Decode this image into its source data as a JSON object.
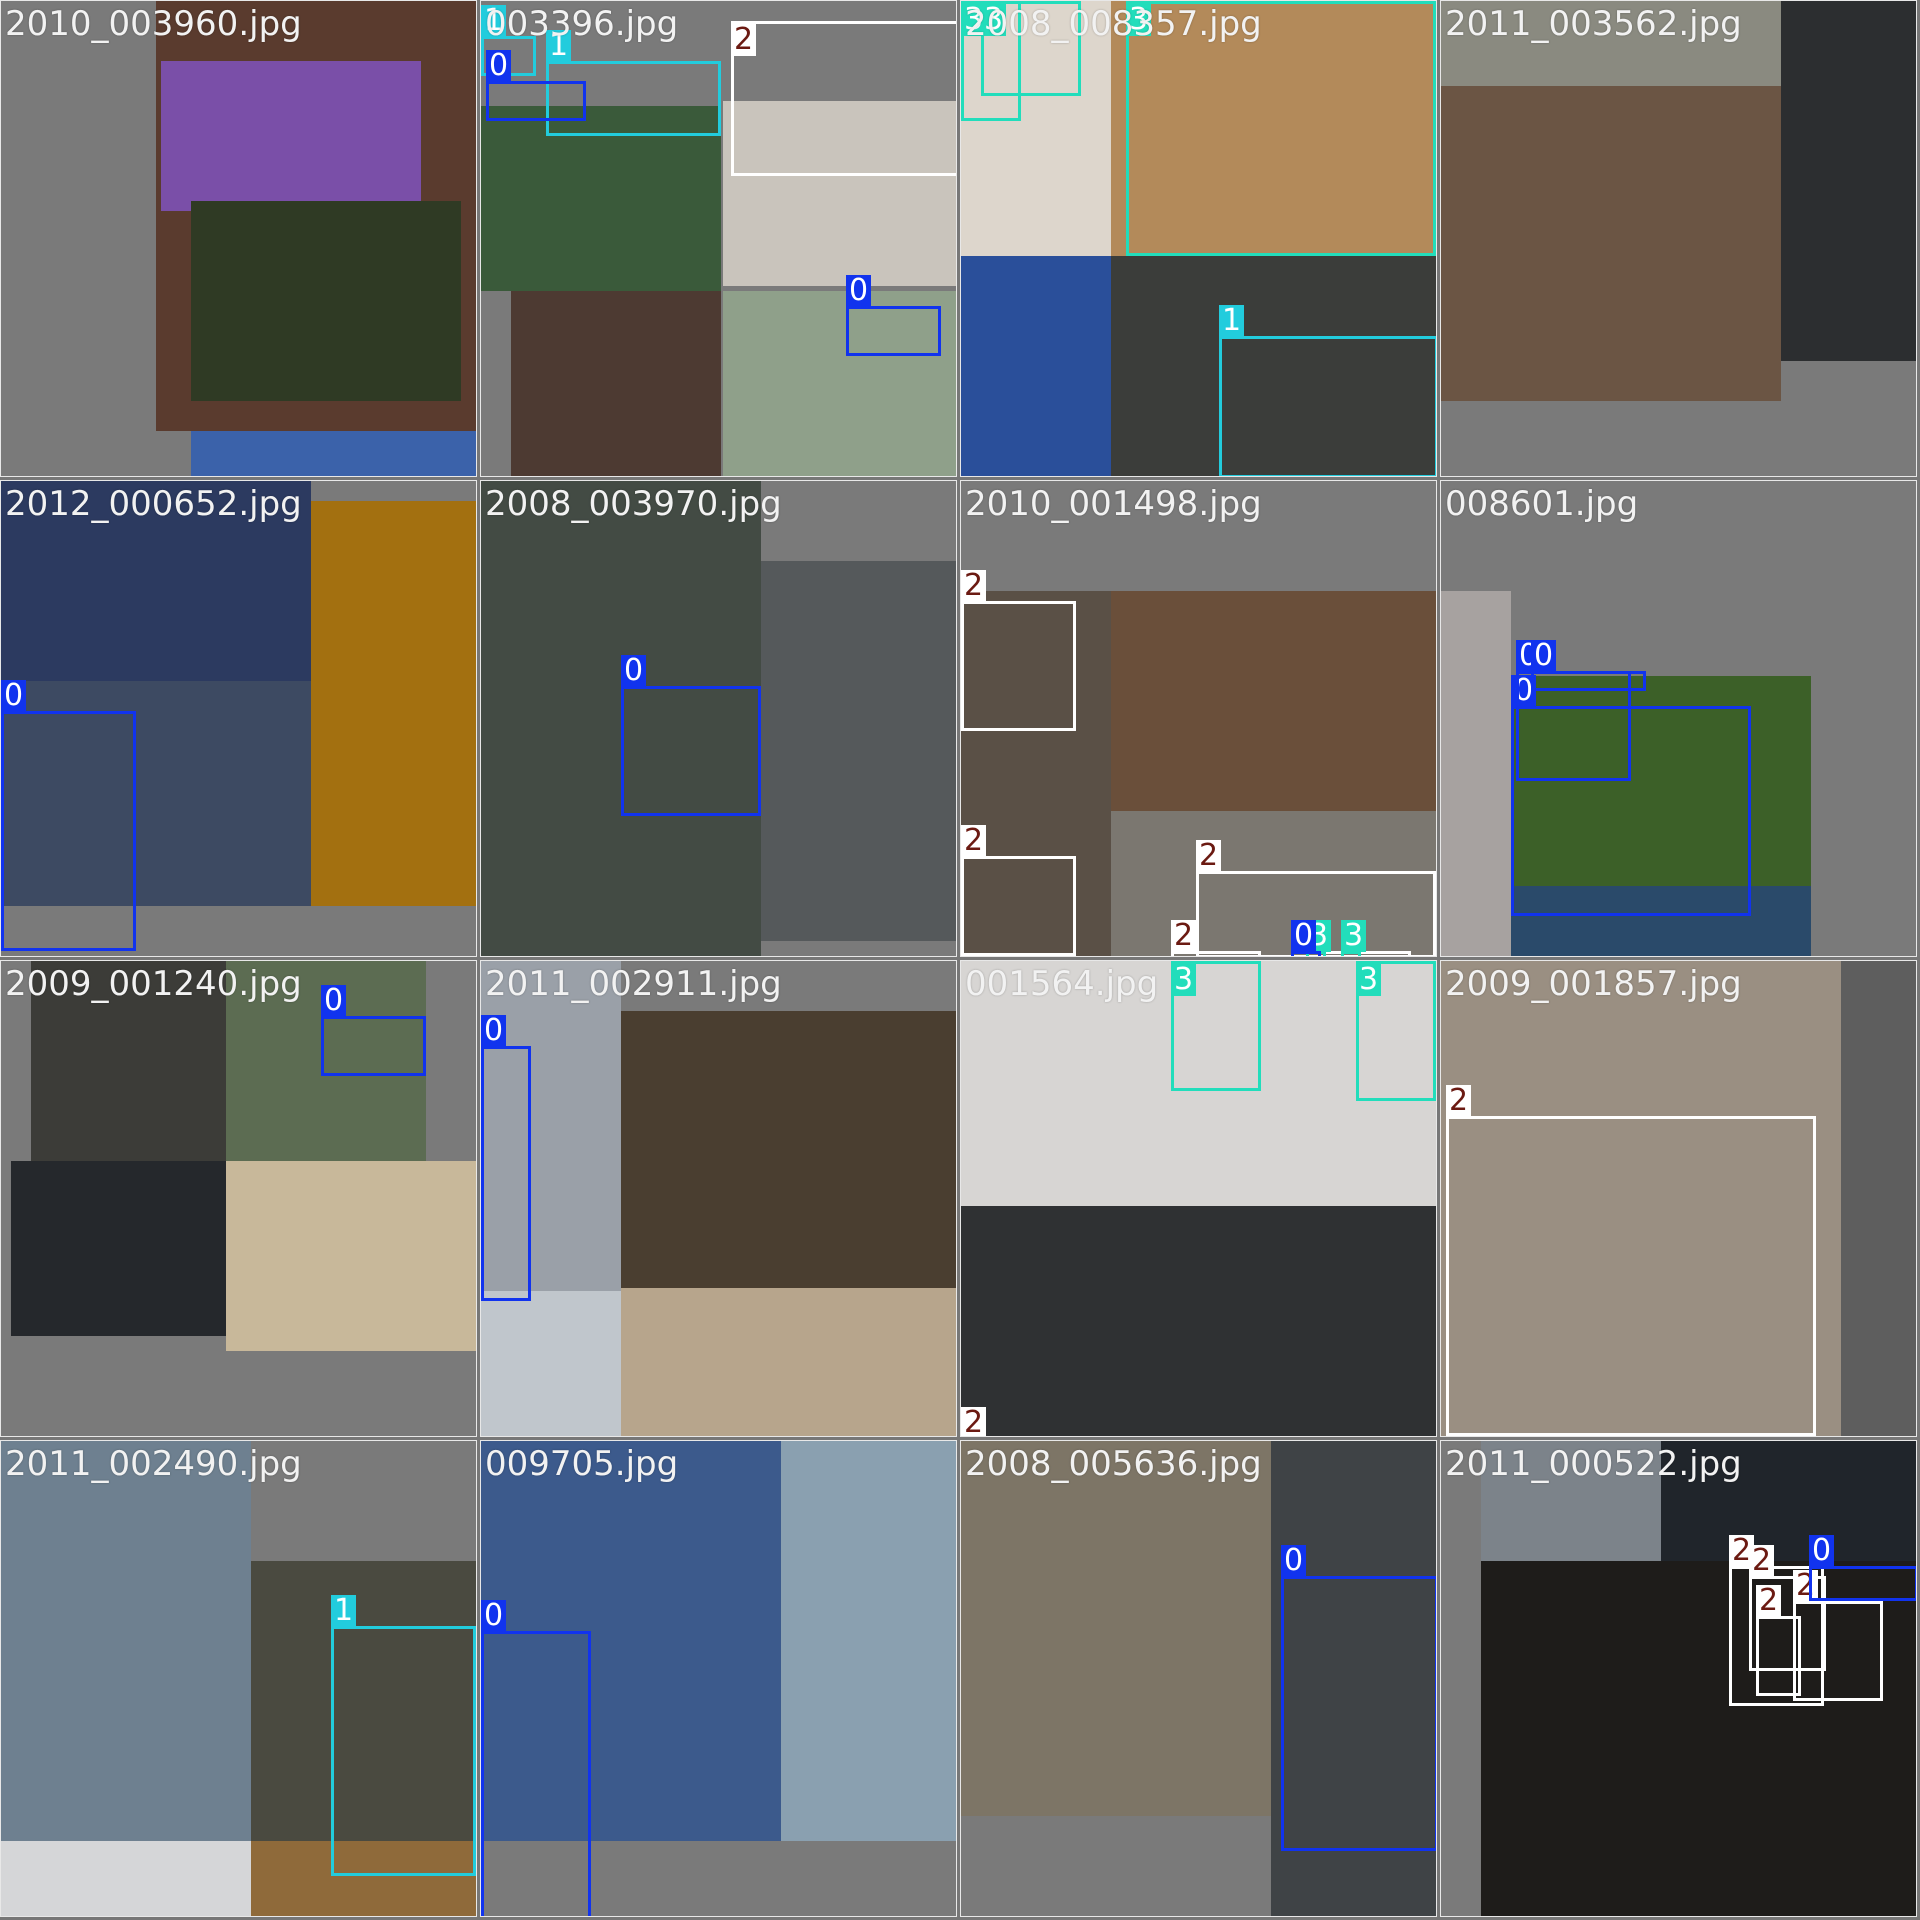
{
  "mosaic": {
    "classes": {
      "0": "#1133ee",
      "1": "#22ccdd",
      "2": "#ffffff",
      "3": "#22ddbb"
    },
    "tiles": [
      {
        "title": "2010_003960.jpg",
        "boxes": []
      },
      {
        "title": "003396.jpg",
        "boxes": [
          {
            "label": "1",
            "cls": "1"
          },
          {
            "label": "1",
            "cls": "1"
          },
          {
            "label": "0",
            "cls": "0"
          },
          {
            "label": "2",
            "cls": "2"
          },
          {
            "label": "0",
            "cls": "0"
          }
        ]
      },
      {
        "title": "2008_008357.jpg",
        "boxes": [
          {
            "label": "3",
            "cls": "3"
          },
          {
            "label": "3",
            "cls": "3"
          },
          {
            "label": "3",
            "cls": "3"
          },
          {
            "label": "1",
            "cls": "1"
          }
        ]
      },
      {
        "title": "2011_003562.jpg",
        "boxes": []
      },
      {
        "title": "2012_000652.jpg",
        "boxes": [
          {
            "label": "0",
            "cls": "0"
          }
        ]
      },
      {
        "title": "2008_003970.jpg",
        "boxes": [
          {
            "label": "0",
            "cls": "0"
          }
        ]
      },
      {
        "title": "2010_001498.jpg",
        "boxes": [
          {
            "label": "2",
            "cls": "2"
          },
          {
            "label": "2",
            "cls": "2"
          },
          {
            "label": "2",
            "cls": "2"
          },
          {
            "label": "2",
            "cls": "2"
          },
          {
            "label": "2",
            "cls": "2"
          },
          {
            "label": "3",
            "cls": "3"
          },
          {
            "label": "0",
            "cls": "0"
          },
          {
            "label": "3",
            "cls": "3"
          }
        ]
      },
      {
        "title": "008601.jpg",
        "boxes": [
          {
            "label": "0",
            "cls": "0"
          },
          {
            "label": "0",
            "cls": "0"
          },
          {
            "label": "0",
            "cls": "0"
          }
        ]
      },
      {
        "title": "2009_001240.jpg",
        "boxes": [
          {
            "label": "0",
            "cls": "0"
          }
        ]
      },
      {
        "title": "2011_002911.jpg",
        "boxes": [
          {
            "label": "0",
            "cls": "0"
          }
        ]
      },
      {
        "title": "001564.jpg",
        "boxes": [
          {
            "label": "3",
            "cls": "3"
          },
          {
            "label": "3",
            "cls": "3"
          },
          {
            "label": "2",
            "cls": "2"
          }
        ]
      },
      {
        "title": "2009_001857.jpg",
        "boxes": [
          {
            "label": "2",
            "cls": "2"
          }
        ]
      },
      {
        "title": "2011_002490.jpg",
        "boxes": [
          {
            "label": "1",
            "cls": "1"
          }
        ]
      },
      {
        "title": "009705.jpg",
        "boxes": [
          {
            "label": "0",
            "cls": "0"
          }
        ]
      },
      {
        "title": "2008_005636.jpg",
        "boxes": [
          {
            "label": "0",
            "cls": "0"
          }
        ]
      },
      {
        "title": "2011_000522.jpg",
        "boxes": [
          {
            "label": "2",
            "cls": "2"
          },
          {
            "label": "2",
            "cls": "2"
          },
          {
            "label": "2",
            "cls": "2"
          },
          {
            "label": "2",
            "cls": "2"
          },
          {
            "label": "0",
            "cls": "0"
          }
        ]
      }
    ]
  }
}
